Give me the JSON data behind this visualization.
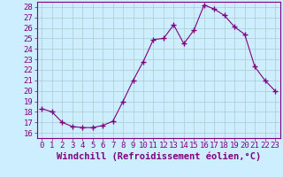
{
  "x": [
    0,
    1,
    2,
    3,
    4,
    5,
    6,
    7,
    8,
    9,
    10,
    11,
    12,
    13,
    14,
    15,
    16,
    17,
    18,
    19,
    20,
    21,
    22,
    23
  ],
  "y": [
    18.3,
    18.0,
    17.0,
    16.6,
    16.5,
    16.5,
    16.7,
    17.1,
    19.0,
    21.0,
    22.8,
    24.9,
    25.0,
    26.3,
    24.5,
    25.8,
    28.2,
    27.8,
    27.2,
    26.1,
    25.4,
    22.3,
    21.0,
    20.0
  ],
  "line_color": "#800080",
  "marker": "+",
  "marker_size": 4,
  "bg_color": "#cceeff",
  "grid_color": "#aacccc",
  "xlabel": "Windchill (Refroidissement éolien,°C)",
  "ylim": [
    15.5,
    28.5
  ],
  "xlim": [
    -0.5,
    23.5
  ],
  "yticks": [
    16,
    17,
    18,
    19,
    20,
    21,
    22,
    23,
    24,
    25,
    26,
    27,
    28
  ],
  "xticks": [
    0,
    1,
    2,
    3,
    4,
    5,
    6,
    7,
    8,
    9,
    10,
    11,
    12,
    13,
    14,
    15,
    16,
    17,
    18,
    19,
    20,
    21,
    22,
    23
  ],
  "font_size": 6.5,
  "xlabel_font_size": 7.5
}
